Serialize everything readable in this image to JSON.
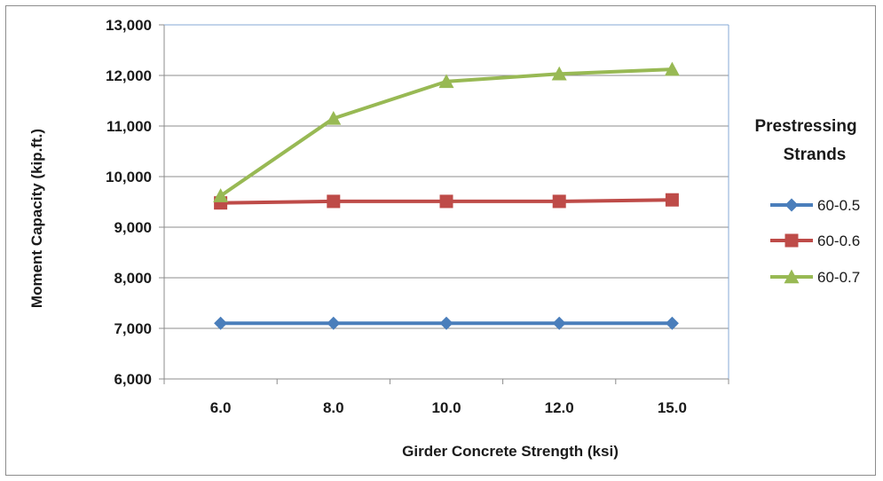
{
  "chart_data": {
    "type": "line",
    "title": "",
    "xlabel": "Girder  Concrete Strength (ksi)",
    "ylabel": "Moment Capacity (kip.ft.)",
    "categories": [
      "6.0",
      "8.0",
      "10.0",
      "12.0",
      "15.0"
    ],
    "ylim": [
      6000,
      13000
    ],
    "yticks": [
      6000,
      7000,
      8000,
      9000,
      10000,
      11000,
      12000,
      13000
    ],
    "ytick_labels": [
      "6,000",
      "7,000",
      "8,000",
      "9,000",
      "10,000",
      "11,000",
      "12,000",
      "13,000"
    ],
    "grid": "horizontal",
    "legend_title": [
      "Prestressing",
      "Strands"
    ],
    "legend_position": "right",
    "series": [
      {
        "name": "60-0.5",
        "color": "#4a7ebb",
        "marker": "diamond",
        "values": [
          7100,
          7100,
          7100,
          7100,
          7100
        ]
      },
      {
        "name": "60-0.6",
        "color": "#be4b48",
        "marker": "square",
        "values": [
          9480,
          9510,
          9510,
          9510,
          9540
        ]
      },
      {
        "name": "60-0.7",
        "color": "#98b954",
        "marker": "triangle",
        "values": [
          9620,
          11150,
          11880,
          12030,
          12120
        ]
      }
    ]
  }
}
